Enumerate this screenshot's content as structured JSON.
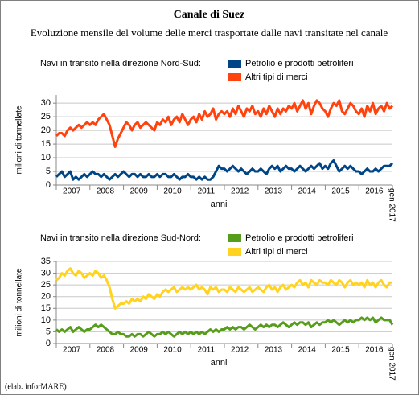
{
  "title": "Canale di Suez",
  "subtitle": "Evoluzione mensile del volume delle merci trasportate dalle navi transitate nel canale",
  "credit": "(elab. inforMARE)",
  "chart_data": [
    {
      "type": "line",
      "legend_title": "Navi in transito nella direzione Nord-Sud:",
      "x_label": "anni",
      "y_label": "milioni di tonnellate",
      "categories": [
        null,
        null,
        null,
        null,
        null,
        "2007",
        null,
        null,
        null,
        null,
        null,
        null,
        null,
        null,
        null,
        null,
        null,
        "2008",
        null,
        null,
        null,
        null,
        null,
        null,
        null,
        null,
        null,
        null,
        null,
        "2009",
        null,
        null,
        null,
        null,
        null,
        null,
        null,
        null,
        null,
        null,
        null,
        "2010",
        null,
        null,
        null,
        null,
        null,
        null,
        null,
        null,
        null,
        null,
        null,
        "2011",
        null,
        null,
        null,
        null,
        null,
        null,
        null,
        null,
        null,
        null,
        null,
        "2012",
        null,
        null,
        null,
        null,
        null,
        null,
        null,
        null,
        null,
        null,
        null,
        "2013",
        null,
        null,
        null,
        null,
        null,
        null,
        null,
        null,
        null,
        null,
        null,
        "2014",
        null,
        null,
        null,
        null,
        null,
        null,
        null,
        null,
        null,
        null,
        null,
        "2015",
        null,
        null,
        null,
        null,
        null,
        null,
        null,
        null,
        null,
        null,
        null,
        "2016",
        null,
        null,
        null,
        null,
        null,
        null,
        "gen 2017"
      ],
      "ylim": [
        0,
        33
      ],
      "yticks": [
        0,
        5,
        10,
        15,
        20,
        25,
        30
      ],
      "grid": true,
      "series": [
        {
          "name": "Petrolio e prodotti petroliferi",
          "color": "#004586",
          "values": [
            3,
            4,
            5,
            3,
            4,
            5,
            2,
            3,
            2,
            3,
            4,
            3,
            4,
            5,
            4,
            4,
            3,
            4,
            3,
            2,
            3,
            4,
            3,
            4,
            5,
            4,
            3,
            4,
            4,
            3,
            4,
            3,
            3,
            4,
            3,
            3,
            4,
            3,
            4,
            4,
            3,
            3,
            4,
            3,
            2,
            3,
            3,
            4,
            3,
            3,
            2,
            3,
            2,
            3,
            2,
            2,
            3,
            5,
            7,
            6,
            6,
            5,
            6,
            7,
            6,
            5,
            6,
            5,
            4,
            5,
            6,
            5,
            5,
            6,
            5,
            4,
            6,
            7,
            6,
            7,
            5,
            6,
            7,
            6,
            6,
            5,
            6,
            7,
            6,
            5,
            6,
            7,
            6,
            7,
            8,
            6,
            7,
            6,
            8,
            9,
            7,
            5,
            6,
            7,
            6,
            7,
            6,
            5,
            5,
            4,
            5,
            6,
            5,
            5,
            6,
            5,
            6,
            7,
            7,
            7,
            8
          ]
        },
        {
          "name": "Altri tipi di merci",
          "color": "#ff420e",
          "values": [
            18,
            19,
            19,
            18,
            20,
            21,
            20,
            21,
            22,
            21,
            22,
            23,
            22,
            23,
            22,
            24,
            25,
            26,
            24,
            22,
            18,
            14,
            17,
            19,
            21,
            23,
            22,
            20,
            22,
            23,
            21,
            22,
            23,
            22,
            21,
            20,
            23,
            22,
            24,
            23,
            25,
            22,
            24,
            25,
            23,
            26,
            24,
            22,
            24,
            25,
            23,
            26,
            24,
            27,
            25,
            26,
            28,
            24,
            26,
            27,
            26,
            27,
            25,
            28,
            26,
            29,
            27,
            25,
            28,
            27,
            29,
            26,
            27,
            25,
            28,
            26,
            29,
            27,
            25,
            28,
            26,
            28,
            27,
            29,
            28,
            30,
            27,
            29,
            31,
            28,
            30,
            26,
            29,
            31,
            30,
            28,
            27,
            25,
            28,
            30,
            29,
            31,
            27,
            26,
            28,
            30,
            29,
            27,
            26,
            28,
            25,
            29,
            27,
            30,
            26,
            28,
            29,
            27,
            30,
            28,
            29
          ]
        }
      ]
    },
    {
      "type": "line",
      "legend_title": "Navi in transito nella direzione Sud-Nord:",
      "x_label": "anni",
      "y_label": "milioni di tonnellate",
      "categories": [
        null,
        null,
        null,
        null,
        null,
        "2007",
        null,
        null,
        null,
        null,
        null,
        null,
        null,
        null,
        null,
        null,
        null,
        "2008",
        null,
        null,
        null,
        null,
        null,
        null,
        null,
        null,
        null,
        null,
        null,
        "2009",
        null,
        null,
        null,
        null,
        null,
        null,
        null,
        null,
        null,
        null,
        null,
        "2010",
        null,
        null,
        null,
        null,
        null,
        null,
        null,
        null,
        null,
        null,
        null,
        "2011",
        null,
        null,
        null,
        null,
        null,
        null,
        null,
        null,
        null,
        null,
        null,
        "2012",
        null,
        null,
        null,
        null,
        null,
        null,
        null,
        null,
        null,
        null,
        null,
        "2013",
        null,
        null,
        null,
        null,
        null,
        null,
        null,
        null,
        null,
        null,
        null,
        "2014",
        null,
        null,
        null,
        null,
        null,
        null,
        null,
        null,
        null,
        null,
        null,
        "2015",
        null,
        null,
        null,
        null,
        null,
        null,
        null,
        null,
        null,
        null,
        null,
        "2016",
        null,
        null,
        null,
        null,
        null,
        null,
        "gen 2017"
      ],
      "ylim": [
        0,
        35
      ],
      "yticks": [
        0,
        5,
        10,
        15,
        20,
        25,
        30,
        35
      ],
      "grid": true,
      "series": [
        {
          "name": "Petrolio e prodotti petroliferi",
          "color": "#579d1c",
          "values": [
            6,
            5,
            6,
            5,
            6,
            7,
            5,
            6,
            7,
            6,
            5,
            6,
            6,
            7,
            8,
            7,
            8,
            7,
            6,
            5,
            4,
            4,
            5,
            4,
            4,
            3,
            3,
            4,
            3,
            4,
            4,
            3,
            4,
            5,
            4,
            3,
            4,
            4,
            5,
            4,
            5,
            4,
            3,
            4,
            5,
            4,
            5,
            4,
            5,
            4,
            5,
            4,
            5,
            4,
            5,
            6,
            5,
            6,
            5,
            6,
            6,
            7,
            6,
            7,
            6,
            7,
            7,
            6,
            7,
            8,
            7,
            6,
            7,
            8,
            7,
            8,
            7,
            8,
            8,
            7,
            8,
            9,
            8,
            7,
            8,
            9,
            8,
            9,
            9,
            8,
            9,
            7,
            8,
            9,
            8,
            9,
            9,
            10,
            9,
            10,
            9,
            8,
            9,
            10,
            9,
            10,
            9,
            10,
            10,
            11,
            10,
            11,
            10,
            11,
            9,
            10,
            11,
            10,
            10,
            10,
            8
          ]
        },
        {
          "name": "Altri tipi di merci",
          "color": "#ffd320",
          "values": [
            27,
            28,
            30,
            29,
            31,
            32,
            30,
            29,
            31,
            30,
            28,
            29,
            30,
            29,
            31,
            30,
            28,
            29,
            27,
            24,
            19,
            15,
            16,
            17,
            17,
            18,
            17,
            19,
            18,
            19,
            18,
            20,
            19,
            21,
            20,
            19,
            21,
            20,
            22,
            23,
            22,
            23,
            24,
            22,
            23,
            24,
            23,
            24,
            23,
            24,
            25,
            23,
            24,
            23,
            21,
            24,
            23,
            24,
            22,
            23,
            23,
            22,
            24,
            23,
            22,
            24,
            23,
            22,
            23,
            24,
            22,
            23,
            24,
            23,
            22,
            24,
            25,
            23,
            24,
            22,
            24,
            25,
            23,
            24,
            25,
            24,
            26,
            27,
            25,
            26,
            24,
            27,
            26,
            25,
            27,
            26,
            26,
            25,
            27,
            26,
            25,
            27,
            26,
            24,
            26,
            27,
            25,
            26,
            25,
            26,
            24,
            27,
            25,
            26,
            24,
            26,
            27,
            25,
            24,
            26,
            26
          ]
        }
      ]
    }
  ]
}
